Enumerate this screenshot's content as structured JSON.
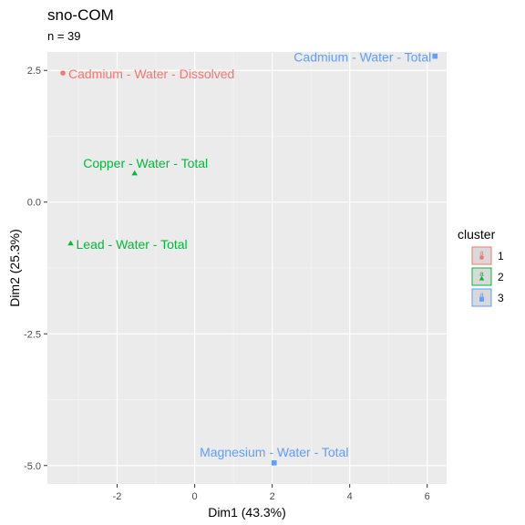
{
  "chart_data": {
    "type": "scatter",
    "title": "sno-COM",
    "subtitle": "n = 39",
    "xlabel": "Dim1 (43.3%)",
    "ylabel": "Dim2 (25.3%)",
    "xlim": [
      -3.8,
      6.5
    ],
    "ylim": [
      -5.35,
      2.85
    ],
    "xticks": [
      -2,
      0,
      2,
      4,
      6
    ],
    "xtick_labels": [
      "-2",
      "0",
      "2",
      "4",
      "6"
    ],
    "yticks": [
      2.5,
      0,
      -2.5,
      -5
    ],
    "ytick_labels": [
      "2.5",
      "0.0",
      "-2.5",
      "-5.0"
    ],
    "grid": true,
    "legend": {
      "title": "cluster",
      "position": "right",
      "entries": [
        {
          "label": "1",
          "color": "#F8766D",
          "shape": "circle"
        },
        {
          "label": "2",
          "color": "#00BA38",
          "shape": "triangle"
        },
        {
          "label": "3",
          "color": "#619CFF",
          "shape": "square"
        }
      ]
    },
    "points": [
      {
        "label": "Cadmium - Water - Dissolved",
        "x": -3.4,
        "y": 2.45,
        "cluster": "1"
      },
      {
        "label": "Copper - Water - Total",
        "x": -1.55,
        "y": 0.55,
        "cluster": "2"
      },
      {
        "label": "Lead - Water - Total",
        "x": -3.2,
        "y": -0.78,
        "cluster": "2"
      },
      {
        "label": "Cadmium - Water - Total",
        "x": 6.2,
        "y": 2.77,
        "cluster": "3"
      },
      {
        "label": "Magnesium - Water - Total",
        "x": 2.05,
        "y": -4.95,
        "cluster": "3"
      }
    ]
  }
}
